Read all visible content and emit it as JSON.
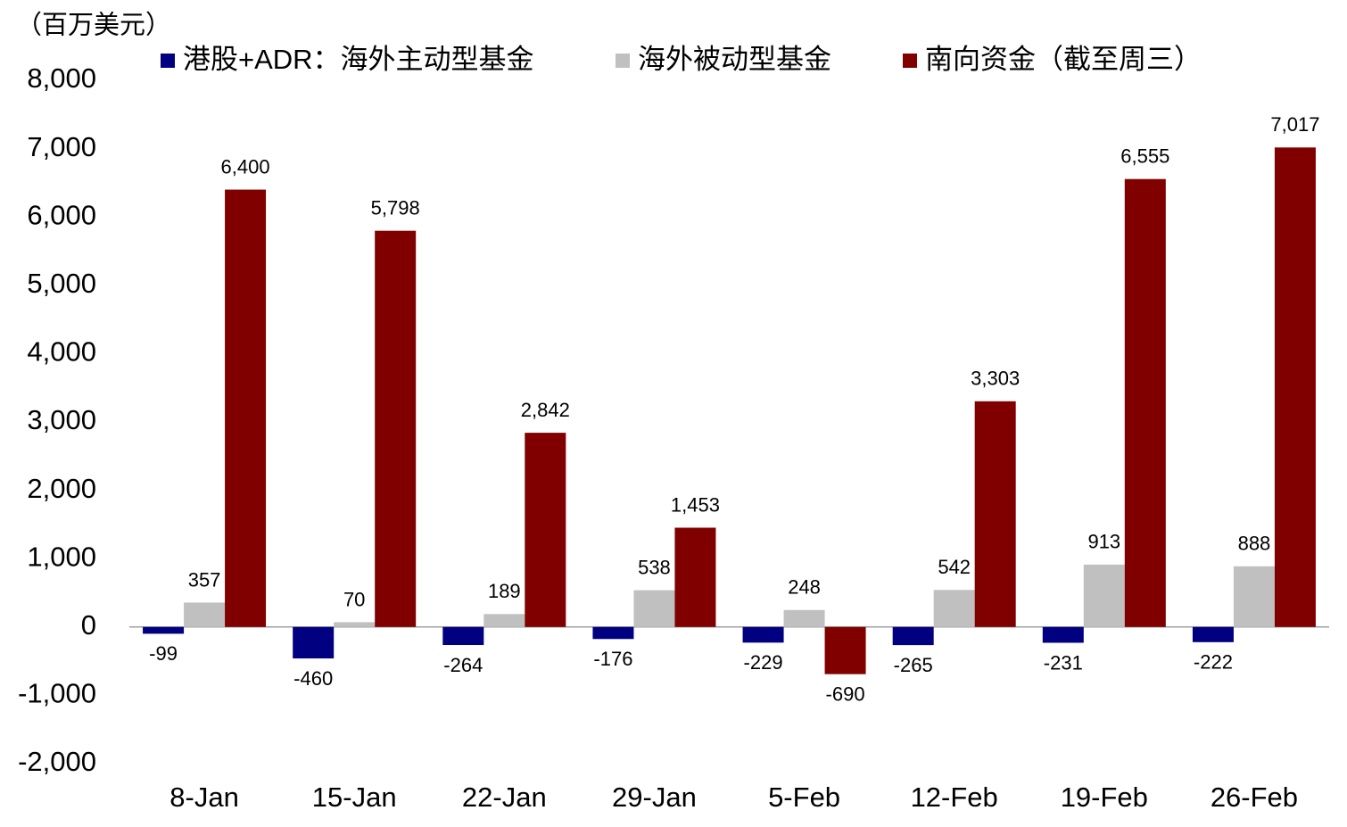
{
  "chart_data": {
    "type": "bar",
    "y_label": "（百万美元）",
    "categories": [
      "8-Jan",
      "15-Jan",
      "22-Jan",
      "29-Jan",
      "5-Feb",
      "12-Feb",
      "19-Feb",
      "26-Feb"
    ],
    "series": [
      {
        "name": "港股+ADR：海外主动型基金",
        "color": "#000080",
        "values": [
          -99,
          -460,
          -264,
          -176,
          -229,
          -265,
          -231,
          -222
        ]
      },
      {
        "name": "海外被动型基金",
        "color": "#c0c0c0",
        "values": [
          357,
          70,
          189,
          538,
          248,
          542,
          913,
          888
        ]
      },
      {
        "name": "南向资金（截至周三）",
        "color": "#800000",
        "values": [
          6400,
          5798,
          2842,
          1453,
          -690,
          3303,
          6555,
          7017
        ],
        "value_labels": [
          "6,400",
          "5,798",
          "2,842",
          "1,453",
          "-690",
          "3,303",
          "6,555",
          "7,017"
        ]
      }
    ],
    "ylim": [
      -2000,
      8000
    ],
    "yticks": [
      {
        "value": -2000,
        "label": "-2,000"
      },
      {
        "value": -1000,
        "label": "-1,000"
      },
      0,
      {
        "value": 1000,
        "label": "1,000"
      },
      {
        "value": 2000,
        "label": "2,000"
      },
      {
        "value": 3000,
        "label": "3,000"
      },
      {
        "value": 4000,
        "label": "4,000"
      },
      {
        "value": 5000,
        "label": "5,000"
      },
      {
        "value": 6000,
        "label": "6,000"
      },
      {
        "value": 7000,
        "label": "7,000"
      },
      {
        "value": 8000,
        "label": "8,000"
      }
    ],
    "negative_color": "#ff0000",
    "grid": false
  }
}
